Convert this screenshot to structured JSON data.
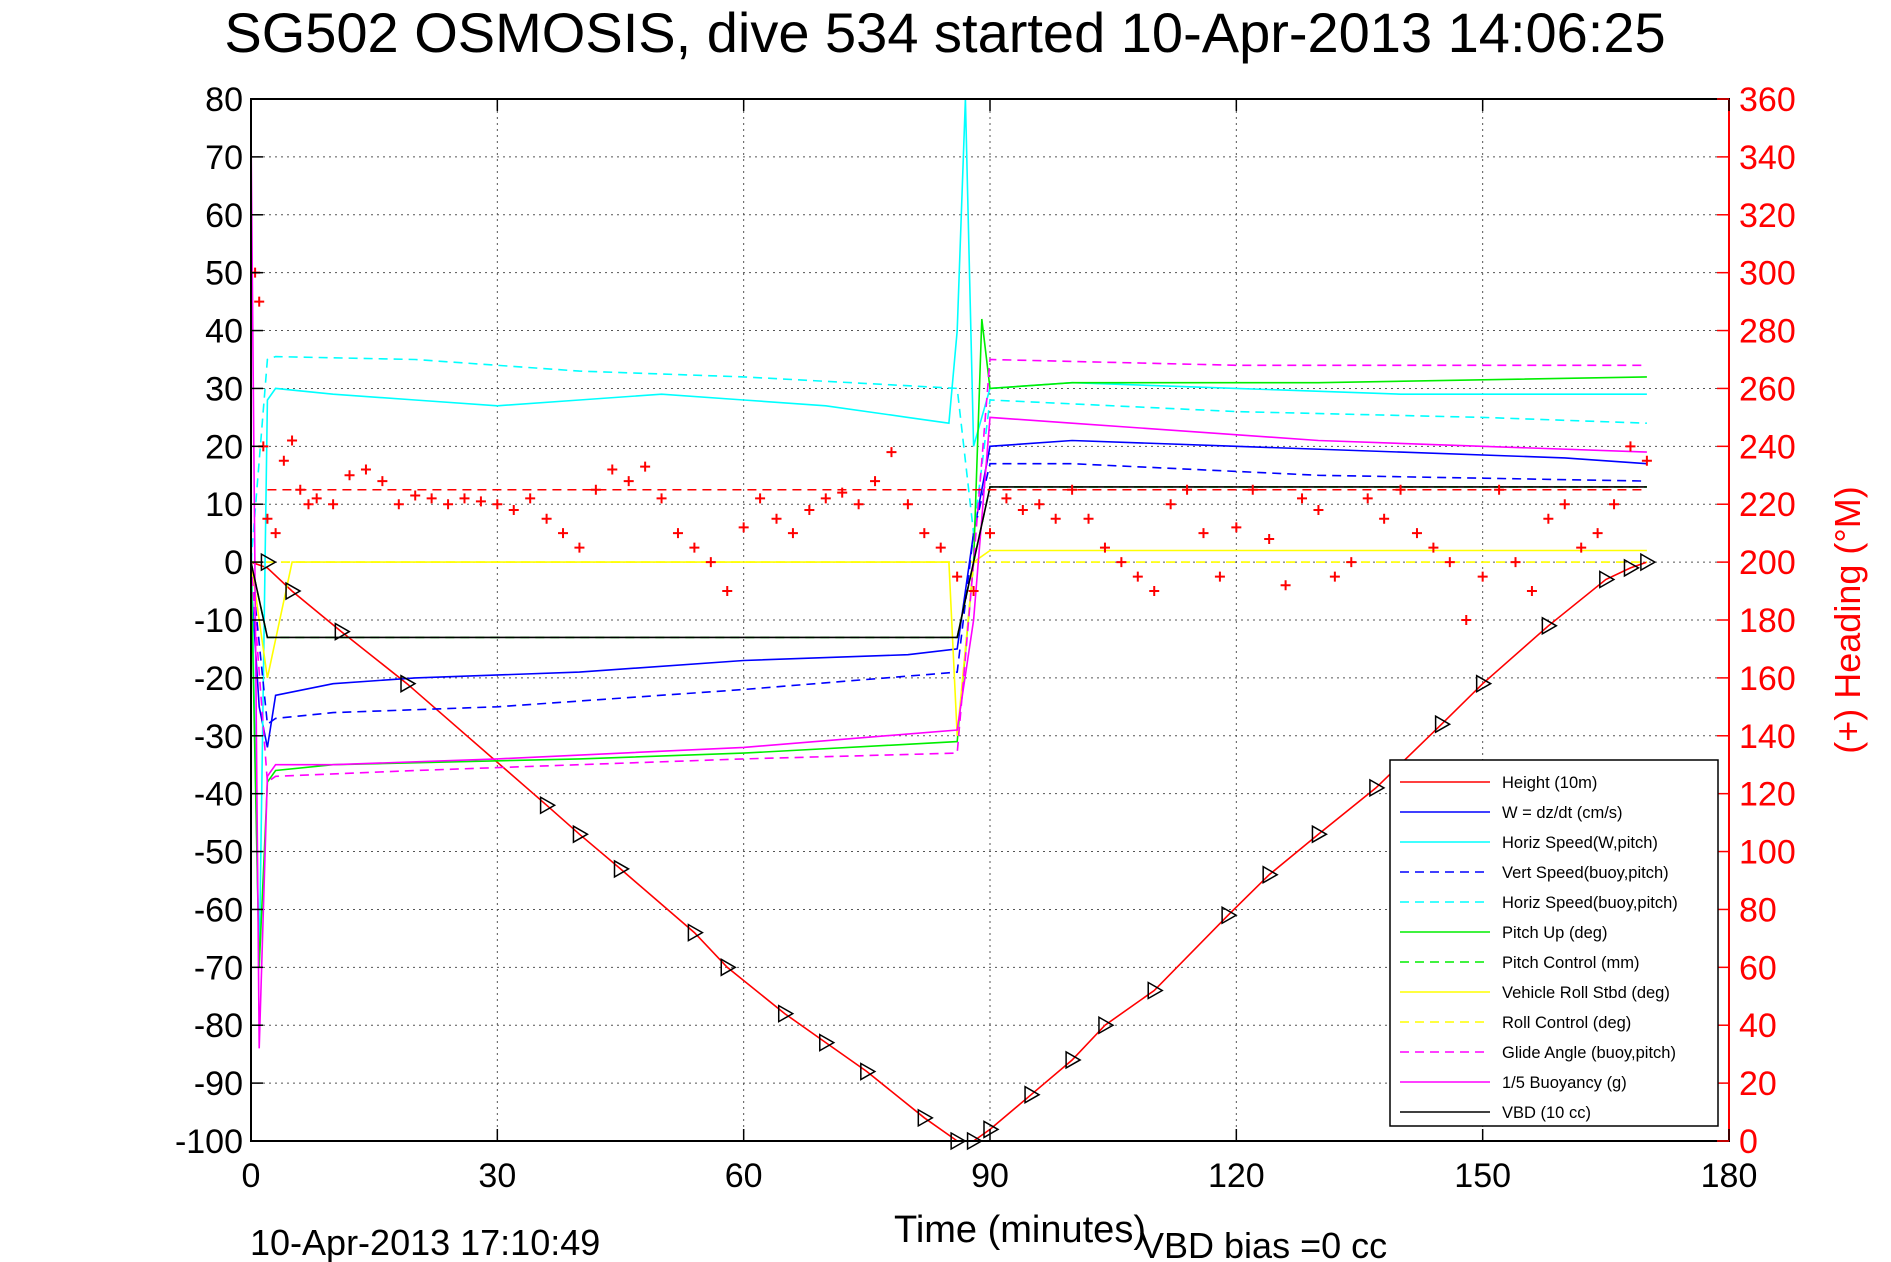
{
  "title": "SG502 OSMOSIS, dive 534 started 10-Apr-2013 14:06:25",
  "footer": {
    "timestamp": "10-Apr-2013 17:10:49",
    "vbd_bias": "VBD bias =0 cc"
  },
  "chart_data": {
    "type": "line",
    "xlabel": "Time (minutes)",
    "ylabel": "",
    "ylabel_right": "(+) Heading (°M)",
    "xlim": [
      0,
      180
    ],
    "ylim": [
      -100,
      80
    ],
    "ylim_right": [
      0,
      360
    ],
    "xticks": [
      0,
      30,
      60,
      90,
      120,
      150,
      180
    ],
    "yticks": [
      80,
      70,
      60,
      50,
      40,
      30,
      20,
      10,
      0,
      -10,
      -20,
      -30,
      -40,
      -50,
      -60,
      -70,
      -80,
      -90,
      -100
    ],
    "yticks_right": [
      360,
      340,
      320,
      300,
      280,
      260,
      240,
      220,
      200,
      180,
      160,
      140,
      120,
      100,
      80,
      60,
      40,
      20,
      0
    ],
    "grid": true,
    "legend_position": "bottom-right",
    "colors": {
      "red": "#ff0000",
      "blue": "#0000ff",
      "cyan": "#00ffff",
      "green": "#00ee00",
      "yellow": "#ffff00",
      "magenta": "#ff00ff",
      "black": "#000000"
    },
    "series": [
      {
        "name": "Height (10m)",
        "color": "#ff0000",
        "dash": "solid",
        "x": [
          0,
          2,
          5,
          11,
          19,
          36,
          40,
          45,
          54,
          58,
          65,
          70,
          75,
          82,
          86,
          88,
          90,
          95,
          100,
          104,
          110,
          119,
          124,
          130,
          137,
          145,
          150,
          158,
          165,
          168,
          170
        ],
        "y": [
          0,
          -1,
          -5,
          -12,
          -21,
          -42,
          -47,
          -53,
          -64,
          -70,
          -78,
          -83,
          -88,
          -96,
          -100,
          -100,
          -98,
          -92,
          -86,
          -80,
          -74,
          -61,
          -54,
          -47,
          -39,
          -28,
          -21,
          -11,
          -3,
          -1,
          0
        ]
      },
      {
        "name": "W = dz/dt (cm/s)",
        "color": "#0000ff",
        "dash": "solid",
        "x": [
          0,
          1,
          2,
          3,
          10,
          20,
          40,
          60,
          80,
          86,
          88,
          90,
          100,
          120,
          140,
          160,
          170
        ],
        "y": [
          -3,
          -25,
          -32,
          -23,
          -21,
          -20,
          -19,
          -17,
          -16,
          -15,
          5,
          20,
          21,
          20,
          19,
          18,
          17
        ]
      },
      {
        "name": "Horiz Speed(W,pitch)",
        "color": "#00ffff",
        "dash": "solid",
        "x": [
          0,
          1,
          2,
          3,
          10,
          20,
          30,
          40,
          50,
          60,
          70,
          80,
          85,
          86,
          87,
          88,
          90,
          100,
          120,
          140,
          160,
          170
        ],
        "y": [
          5,
          -70,
          28,
          30,
          29,
          28,
          27,
          28,
          29,
          28,
          27,
          25,
          24,
          40,
          80,
          20,
          30,
          31,
          30,
          29,
          29,
          29
        ]
      },
      {
        "name": "Vert Speed(buoy,pitch)",
        "color": "#0000ff",
        "dash": "dashed",
        "x": [
          0,
          2,
          3,
          10,
          30,
          60,
          86,
          88,
          90,
          100,
          130,
          170
        ],
        "y": [
          0,
          -28,
          -27,
          -26,
          -25,
          -22,
          -19,
          5,
          17,
          17,
          15,
          14
        ]
      },
      {
        "name": "Horiz Speed(buoy,pitch)",
        "color": "#00ffff",
        "dash": "dashed",
        "x": [
          0,
          2,
          3,
          20,
          40,
          60,
          86,
          88,
          90,
          120,
          150,
          170
        ],
        "y": [
          0,
          35,
          35.5,
          35,
          33,
          32,
          30,
          5,
          28,
          26,
          25,
          24
        ]
      },
      {
        "name": "Pitch Up (deg)",
        "color": "#00ee00",
        "dash": "solid",
        "x": [
          0,
          1,
          2,
          3,
          10,
          40,
          60,
          86,
          88,
          89,
          90,
          100,
          130,
          170
        ],
        "y": [
          0,
          -70,
          -38,
          -36,
          -35,
          -34,
          -33,
          -31,
          0,
          42,
          30,
          31,
          31,
          32
        ]
      },
      {
        "name": "Pitch Control (mm)",
        "color": "#00ee00",
        "dash": "dashed",
        "x": [
          0,
          2,
          86,
          88,
          90,
          170
        ],
        "y": [
          0,
          -13,
          -13,
          0,
          13,
          13
        ]
      },
      {
        "name": "Vehicle Roll Stbd (deg)",
        "color": "#ffff00",
        "dash": "solid",
        "x": [
          0,
          2,
          5,
          7,
          10,
          20,
          30,
          40,
          50,
          60,
          70,
          80,
          85,
          86,
          88,
          90,
          100,
          110,
          120,
          130,
          140,
          150,
          160,
          170
        ],
        "y": [
          0,
          -20,
          0,
          0,
          0,
          0,
          0,
          0,
          0,
          0,
          0,
          0,
          0,
          -30,
          0,
          2,
          2,
          2,
          2,
          2,
          2,
          2,
          2,
          2
        ]
      },
      {
        "name": "Roll Control (deg)",
        "color": "#ffff00",
        "dash": "dashed",
        "x": [
          0,
          5,
          86,
          90,
          170
        ],
        "y": [
          0,
          0,
          0,
          0,
          0
        ]
      },
      {
        "name": "Glide Angle (buoy,pitch)",
        "color": "#ff00ff",
        "dash": "dashed",
        "x": [
          0,
          2,
          3,
          20,
          40,
          60,
          86,
          88,
          90,
          120,
          150,
          170
        ],
        "y": [
          0,
          -38,
          -37,
          -36,
          -35,
          -34,
          -33,
          0,
          35,
          34,
          34,
          34
        ]
      },
      {
        "name": "1/5 Buoyancy (g)",
        "color": "#ff00ff",
        "dash": "solid",
        "x": [
          0,
          1,
          2,
          3,
          10,
          30,
          60,
          86,
          88,
          90,
          100,
          130,
          170
        ],
        "y": [
          75,
          -84,
          -37,
          -35,
          -35,
          -34,
          -32,
          -29,
          -10,
          25,
          24,
          21,
          19
        ]
      },
      {
        "name": "VBD (10 cc)",
        "color": "#000000",
        "dash": "solid",
        "x": [
          0,
          2,
          86,
          88,
          90,
          170
        ],
        "y": [
          0,
          -13,
          -13,
          0,
          13,
          13
        ]
      }
    ],
    "heading_points": {
      "color": "#ff0000",
      "x": [
        0.5,
        1,
        1.5,
        2,
        3,
        4,
        5,
        6,
        7,
        8,
        10,
        12,
        14,
        16,
        18,
        20,
        22,
        24,
        26,
        28,
        30,
        32,
        34,
        36,
        38,
        40,
        42,
        44,
        46,
        48,
        50,
        52,
        54,
        56,
        58,
        60,
        62,
        64,
        66,
        68,
        70,
        72,
        74,
        76,
        78,
        80,
        82,
        84,
        86,
        88,
        90,
        92,
        94,
        96,
        98,
        100,
        102,
        104,
        106,
        108,
        110,
        112,
        114,
        116,
        118,
        120,
        122,
        124,
        126,
        128,
        130,
        132,
        134,
        136,
        138,
        140,
        142,
        144,
        146,
        148,
        150,
        152,
        154,
        156,
        158,
        160,
        162,
        164,
        166,
        168,
        170
      ],
      "y": [
        300,
        290,
        240,
        215,
        210,
        235,
        242,
        225,
        220,
        222,
        220,
        230,
        232,
        228,
        220,
        223,
        222,
        220,
        222,
        221,
        220,
        218,
        222,
        215,
        210,
        205,
        225,
        232,
        228,
        233,
        222,
        210,
        205,
        200,
        190,
        212,
        222,
        215,
        210,
        218,
        222,
        224,
        220,
        228,
        238,
        220,
        210,
        205,
        195,
        190,
        210,
        222,
        218,
        220,
        215,
        225,
        215,
        205,
        200,
        195,
        190,
        220,
        225,
        210,
        195,
        212,
        225,
        208,
        192,
        222,
        218,
        195,
        200,
        222,
        215,
        225,
        210,
        205,
        200,
        180,
        195,
        225,
        200,
        190,
        215,
        220,
        205,
        210,
        220,
        240,
        235
      ]
    },
    "heading_target": {
      "color": "#ff0000",
      "dash": "dashed",
      "x": [
        2,
        170
      ],
      "y": [
        225,
        225
      ]
    },
    "vbd_markers": {
      "color": "#000000",
      "x": [
        2,
        5,
        11,
        19,
        36,
        40,
        45,
        54,
        58,
        65,
        70,
        75,
        82,
        86,
        88,
        90,
        95,
        100,
        104,
        110,
        119,
        124,
        130,
        137,
        145,
        150,
        158,
        165,
        168,
        170
      ],
      "y": [
        0,
        -5,
        -12,
        -21,
        -42,
        -47,
        -53,
        -64,
        -70,
        -78,
        -83,
        -88,
        -96,
        -100,
        -100,
        -98,
        -92,
        -86,
        -80,
        -74,
        -61,
        -54,
        -47,
        -39,
        -28,
        -21,
        -11,
        -3,
        -1,
        0
      ]
    }
  }
}
